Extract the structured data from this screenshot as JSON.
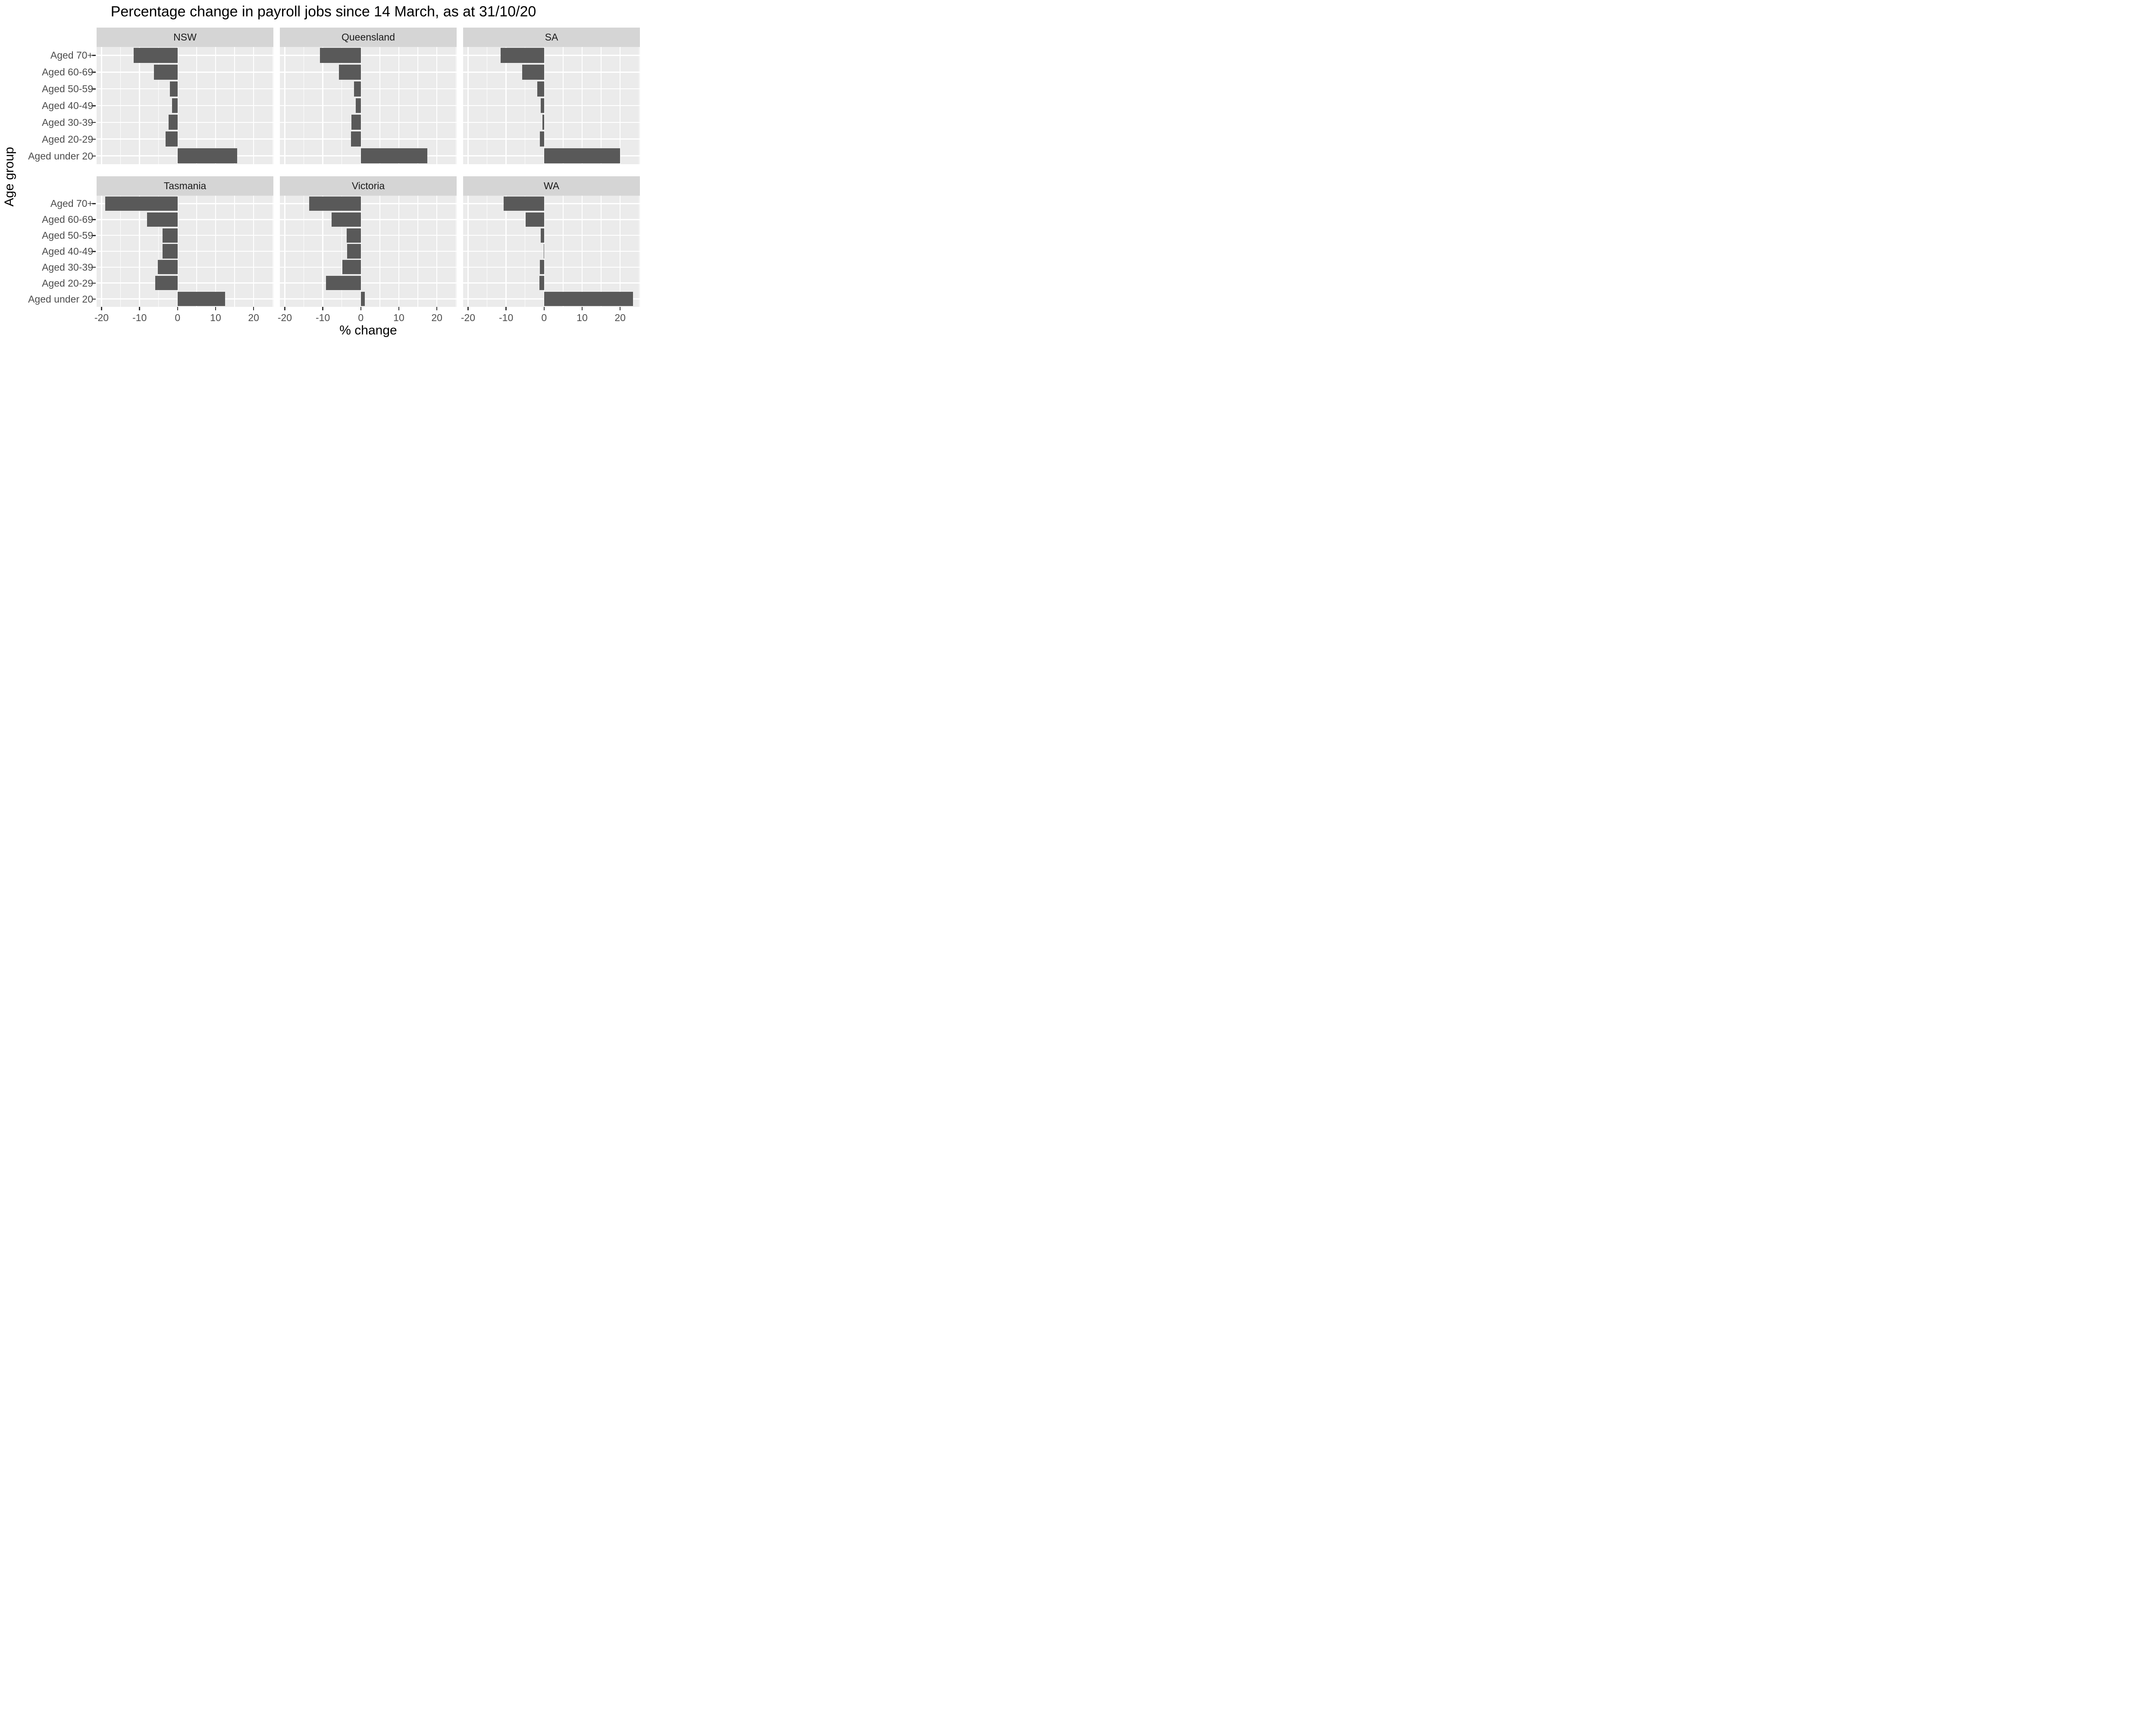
{
  "chart_data": {
    "type": "bar",
    "orientation": "horizontal",
    "title": "Percentage change in payroll jobs since 14 March, as at 31/10/20",
    "xlabel": "% change",
    "ylabel": "Age group",
    "categories": [
      "Aged 70+",
      "Aged 60-69",
      "Aged 50-59",
      "Aged 40-49",
      "Aged 30-39",
      "Aged 20-29",
      "Aged under 20"
    ],
    "x_ticks": [
      -20,
      -10,
      0,
      10,
      20
    ],
    "x_minor_ticks": [
      -15,
      -5,
      5,
      15,
      25
    ],
    "xlim": [
      -21.3,
      25.2
    ],
    "facet_layout": {
      "rows": 2,
      "cols": 3
    },
    "facets": [
      {
        "label": "NSW",
        "values": [
          -11.6,
          -6.2,
          -2.0,
          -1.5,
          -2.4,
          -3.2,
          15.7
        ]
      },
      {
        "label": "Queensland",
        "values": [
          -10.8,
          -5.8,
          -1.8,
          -1.3,
          -2.5,
          -2.6,
          17.5
        ]
      },
      {
        "label": "SA",
        "values": [
          -11.4,
          -5.8,
          -1.8,
          -0.9,
          -0.4,
          -1.1,
          20.0
        ]
      },
      {
        "label": "Tasmania",
        "values": [
          -19.0,
          -8.0,
          -4.0,
          -4.0,
          -5.2,
          -5.9,
          12.5
        ]
      },
      {
        "label": "Victoria",
        "values": [
          -13.6,
          -7.7,
          -3.7,
          -3.6,
          -4.9,
          -9.2,
          1.0
        ]
      },
      {
        "label": "WA",
        "values": [
          -10.6,
          -4.9,
          -0.9,
          -0.1,
          -1.1,
          -1.2,
          23.4
        ]
      }
    ],
    "style": {
      "bar_color": "#595959",
      "panel_bg": "#EBEBEB",
      "strip_bg": "#D5D5D5",
      "grid_color": "#FFFFFF",
      "axis_text_color": "#4D4D4D",
      "strip_text_color": "#1A1A1A",
      "tick_mark_color": "#333333",
      "title_color": "#000000",
      "background": "#FFFFFF",
      "legend": "none",
      "grid": "on"
    }
  }
}
